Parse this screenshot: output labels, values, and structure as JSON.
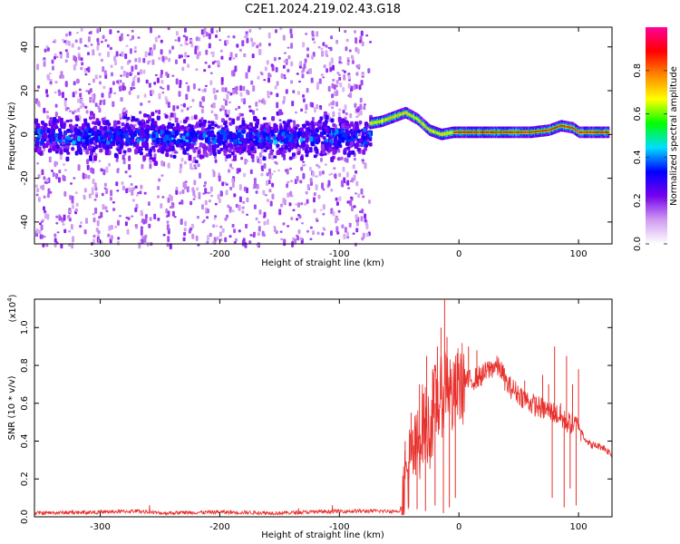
{
  "figure": {
    "title": "C2E1.2024.219.02.43.G18"
  },
  "chart_data": [
    {
      "type": "heatmap",
      "xlabel": "Height of straight line (km)",
      "ylabel": "Frequency (Hz)",
      "xlim": [
        -355,
        128
      ],
      "ylim": [
        -50,
        49
      ],
      "xticks": [
        -300,
        -200,
        -100,
        0,
        100
      ],
      "xtick_labels": [
        "-300",
        "-200",
        "-100",
        "0",
        "100"
      ],
      "yticks": [
        -40,
        -20,
        0,
        20,
        40
      ],
      "ytick_labels": [
        "-40",
        "-20",
        "0",
        "20",
        "40"
      ],
      "grid": false,
      "description_values": {
        "noisy_region_x": [
          -355,
          -75
        ],
        "noise_band_center_hz": 0,
        "noise_band_halfwidth_hz": 8,
        "signal_trace": {
          "x": [
            -75,
            -65,
            -55,
            -45,
            -35,
            -25,
            -15,
            -5,
            0,
            20,
            40,
            60,
            75,
            85,
            95,
            100,
            110,
            125
          ],
          "y": [
            5,
            6,
            8,
            10,
            7,
            2,
            0,
            1,
            1,
            1,
            1,
            1,
            2,
            4,
            3,
            1,
            1,
            1
          ]
        }
      },
      "colorbar": {
        "label": "Normalized spectral amplitude",
        "range": [
          0,
          1
        ],
        "ticks": [
          0.0,
          0.2,
          0.4,
          0.6,
          0.8
        ],
        "tick_labels": [
          "0.0",
          "0.2",
          "0.4",
          "0.6",
          "0.8"
        ],
        "colormap": [
          "#ffffff",
          "#cf9bf0",
          "#7700ee",
          "#0000ff",
          "#00ddff",
          "#00ff00",
          "#ffff00",
          "#ff8800",
          "#ff0000",
          "#ff0099"
        ]
      }
    },
    {
      "type": "line",
      "xlabel": "Height of straight line (km)",
      "ylabel": "SNR (10 * v/v)",
      "scale_label_base": "(x10",
      "scale_label_exp": "4",
      "scale_label_end": ")",
      "xlim": [
        -355,
        128
      ],
      "ylim": [
        0,
        1.15
      ],
      "xticks": [
        -300,
        -200,
        -100,
        0,
        100
      ],
      "xtick_labels": [
        "-300",
        "-200",
        "-100",
        "0",
        "100"
      ],
      "yticks": [
        0.0,
        0.2,
        0.4,
        0.6,
        0.8,
        1.0
      ],
      "ytick_labels": [
        "0.0",
        "0.2",
        "0.4",
        "0.6",
        "0.8",
        "1.0"
      ],
      "color": "#e8302c",
      "grid": false,
      "series": [
        {
          "x": [
            -355,
            -300,
            -270,
            -250,
            -200,
            -150,
            -100,
            -60,
            -50,
            -47,
            -45,
            -40,
            -35,
            -30,
            -25,
            -20,
            -15,
            -10,
            -5,
            0,
            10,
            20,
            30,
            35,
            40,
            50,
            60,
            70,
            80,
            90,
            100,
            105,
            110,
            120,
            128
          ],
          "y": [
            0.02,
            0.025,
            0.03,
            0.02,
            0.025,
            0.02,
            0.03,
            0.03,
            0.03,
            0.07,
            0.2,
            0.3,
            0.35,
            0.5,
            0.45,
            0.6,
            0.62,
            0.75,
            0.6,
            0.7,
            0.72,
            0.75,
            0.8,
            0.78,
            0.7,
            0.65,
            0.6,
            0.57,
            0.55,
            0.5,
            0.48,
            0.42,
            0.38,
            0.37,
            0.33
          ]
        }
      ],
      "spikes": {
        "x": [
          -45,
          -40,
          -37,
          -33,
          -30,
          -27,
          -22,
          -18,
          -15,
          -12,
          -10,
          8,
          15,
          25,
          55,
          70,
          75,
          80,
          85,
          90,
          95,
          100,
          102
        ],
        "y": [
          0.4,
          0.55,
          0.48,
          0.7,
          0.65,
          0.85,
          0.78,
          0.9,
          1.0,
          1.15,
          0.95,
          0.9,
          0.88,
          0.82,
          0.72,
          0.75,
          0.7,
          0.9,
          0.6,
          0.85,
          0.7,
          0.78,
          0.4
        ]
      },
      "dips": {
        "x": [
          -42,
          -35,
          -28,
          -20,
          -13,
          -8,
          -3,
          78,
          88,
          93,
          98
        ],
        "y": [
          0.05,
          0.04,
          0.03,
          0.06,
          0.02,
          0.05,
          0.1,
          0.1,
          0.05,
          0.15,
          0.06
        ]
      }
    }
  ]
}
